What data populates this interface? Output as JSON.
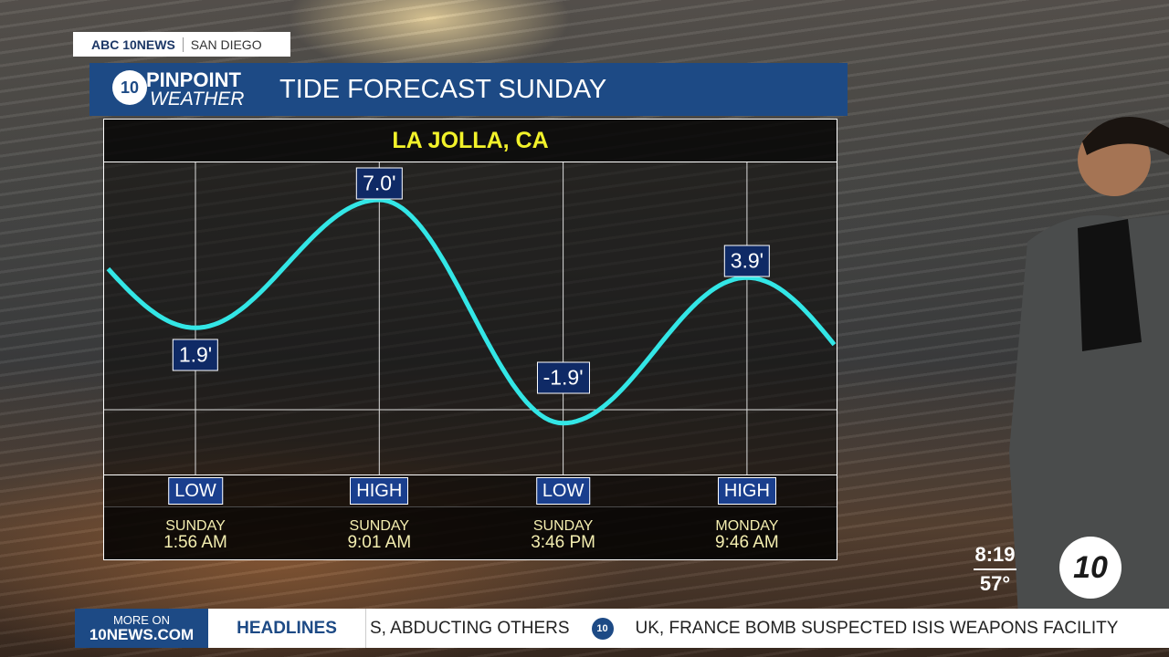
{
  "brand": {
    "network": "ABC 10NEWS",
    "city": "SAN DIEGO"
  },
  "header": {
    "logo_top": "PINPOINT",
    "logo_bottom": "WEATHER",
    "logo_badge": "abc 10",
    "title": "TIDE FORECAST SUNDAY"
  },
  "chart_data": {
    "type": "line",
    "title": "LA JOLLA, CA",
    "series": [
      {
        "values": [
          1.9,
          7.0,
          -1.9,
          3.9
        ]
      }
    ],
    "value_labels": [
      "1.9'",
      "7.0'",
      "-1.9'",
      "3.9'"
    ],
    "categories": [
      "LOW",
      "HIGH",
      "LOW",
      "HIGH"
    ],
    "days": [
      "SUNDAY",
      "SUNDAY",
      "SUNDAY",
      "MONDAY"
    ],
    "times": [
      "1:56 AM",
      "9:01 AM",
      "3:46 PM",
      "9:46 AM"
    ],
    "line_color": "#33e6e6"
  },
  "bug": {
    "time": "8:19",
    "temp": "57°",
    "logo": "abc 10"
  },
  "ticker": {
    "more_on": "MORE ON",
    "site": "10NEWS.COM",
    "section": "HEADLINES",
    "items": [
      "S, ABDUCTING OTHERS",
      "UK, FRANCE BOMB SUSPECTED ISIS WEAPONS FACILITY"
    ]
  }
}
